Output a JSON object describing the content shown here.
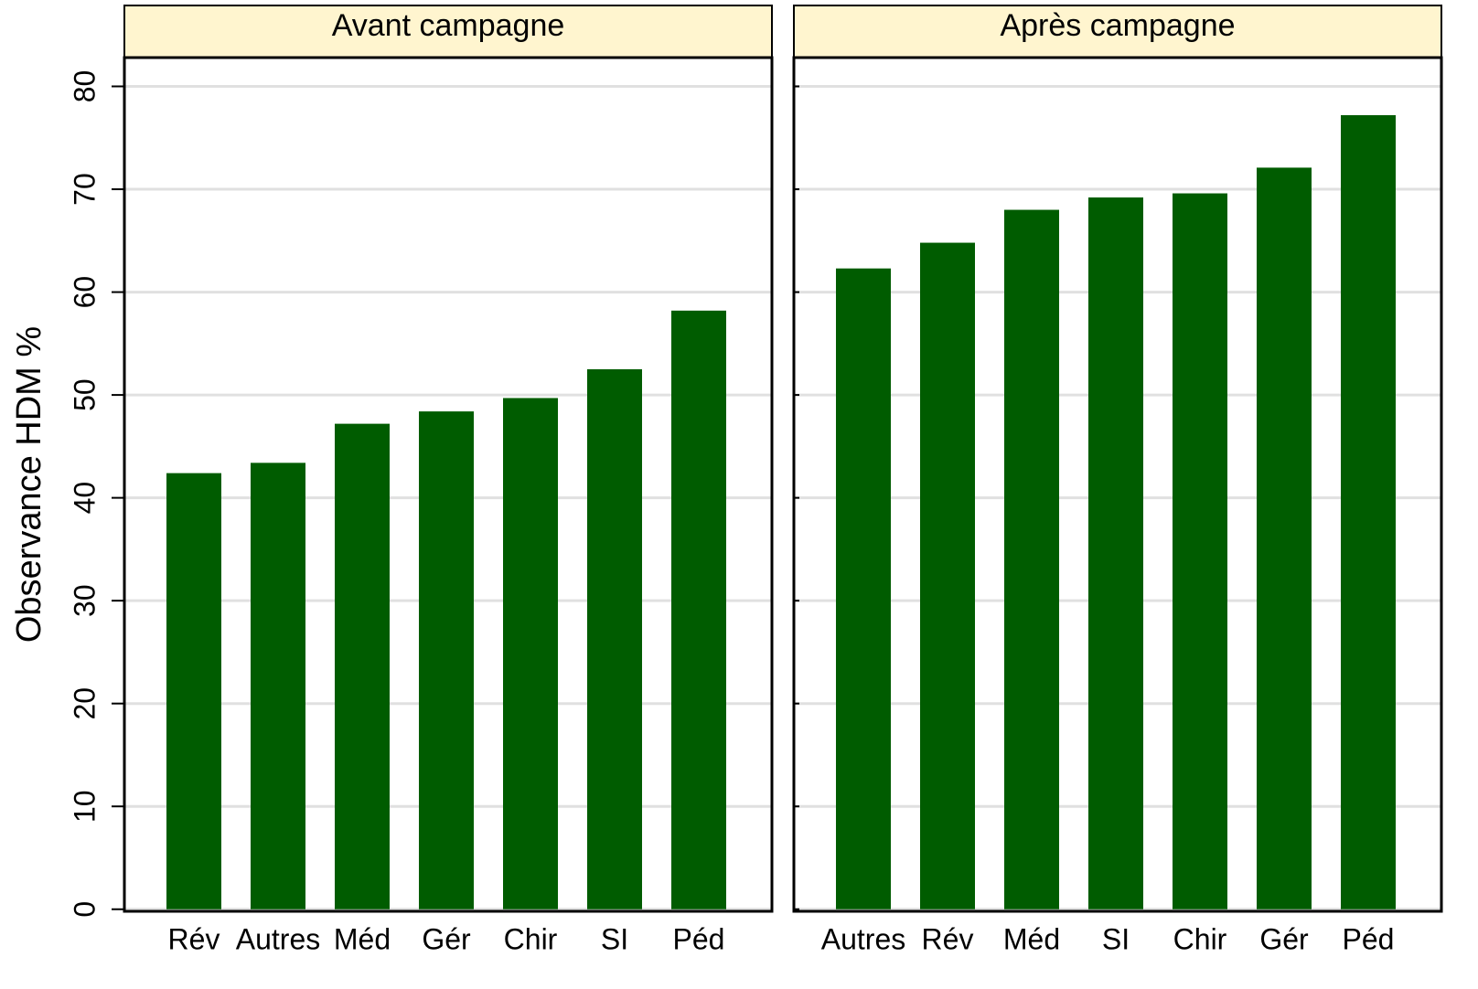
{
  "chart_data": [
    {
      "type": "bar",
      "title": "Avant campagne",
      "ylabel": "Observance HDM %",
      "categories": [
        "Rév",
        "Autres",
        "Méd",
        "Gér",
        "Chir",
        "SI",
        "Péd"
      ],
      "values": [
        42.4,
        43.4,
        47.2,
        48.4,
        49.7,
        52.5,
        58.2
      ],
      "color": "#005c00",
      "ylim": [
        -0.2,
        82.8
      ],
      "yticks": [
        0,
        10,
        20,
        30,
        40,
        50,
        60,
        70,
        80
      ],
      "grid": true
    },
    {
      "type": "bar",
      "title": "Après campagne",
      "categories": [
        "Autres",
        "Rév",
        "Méd",
        "SI",
        "Chir",
        "Gér",
        "Péd"
      ],
      "values": [
        62.3,
        64.8,
        68.0,
        69.2,
        69.6,
        72.1,
        77.2
      ],
      "color": "#005c00",
      "ylim": [
        -0.2,
        82.8
      ],
      "yticks": [
        0,
        10,
        20,
        30,
        40,
        50,
        60,
        70,
        80
      ],
      "grid": true
    }
  ]
}
